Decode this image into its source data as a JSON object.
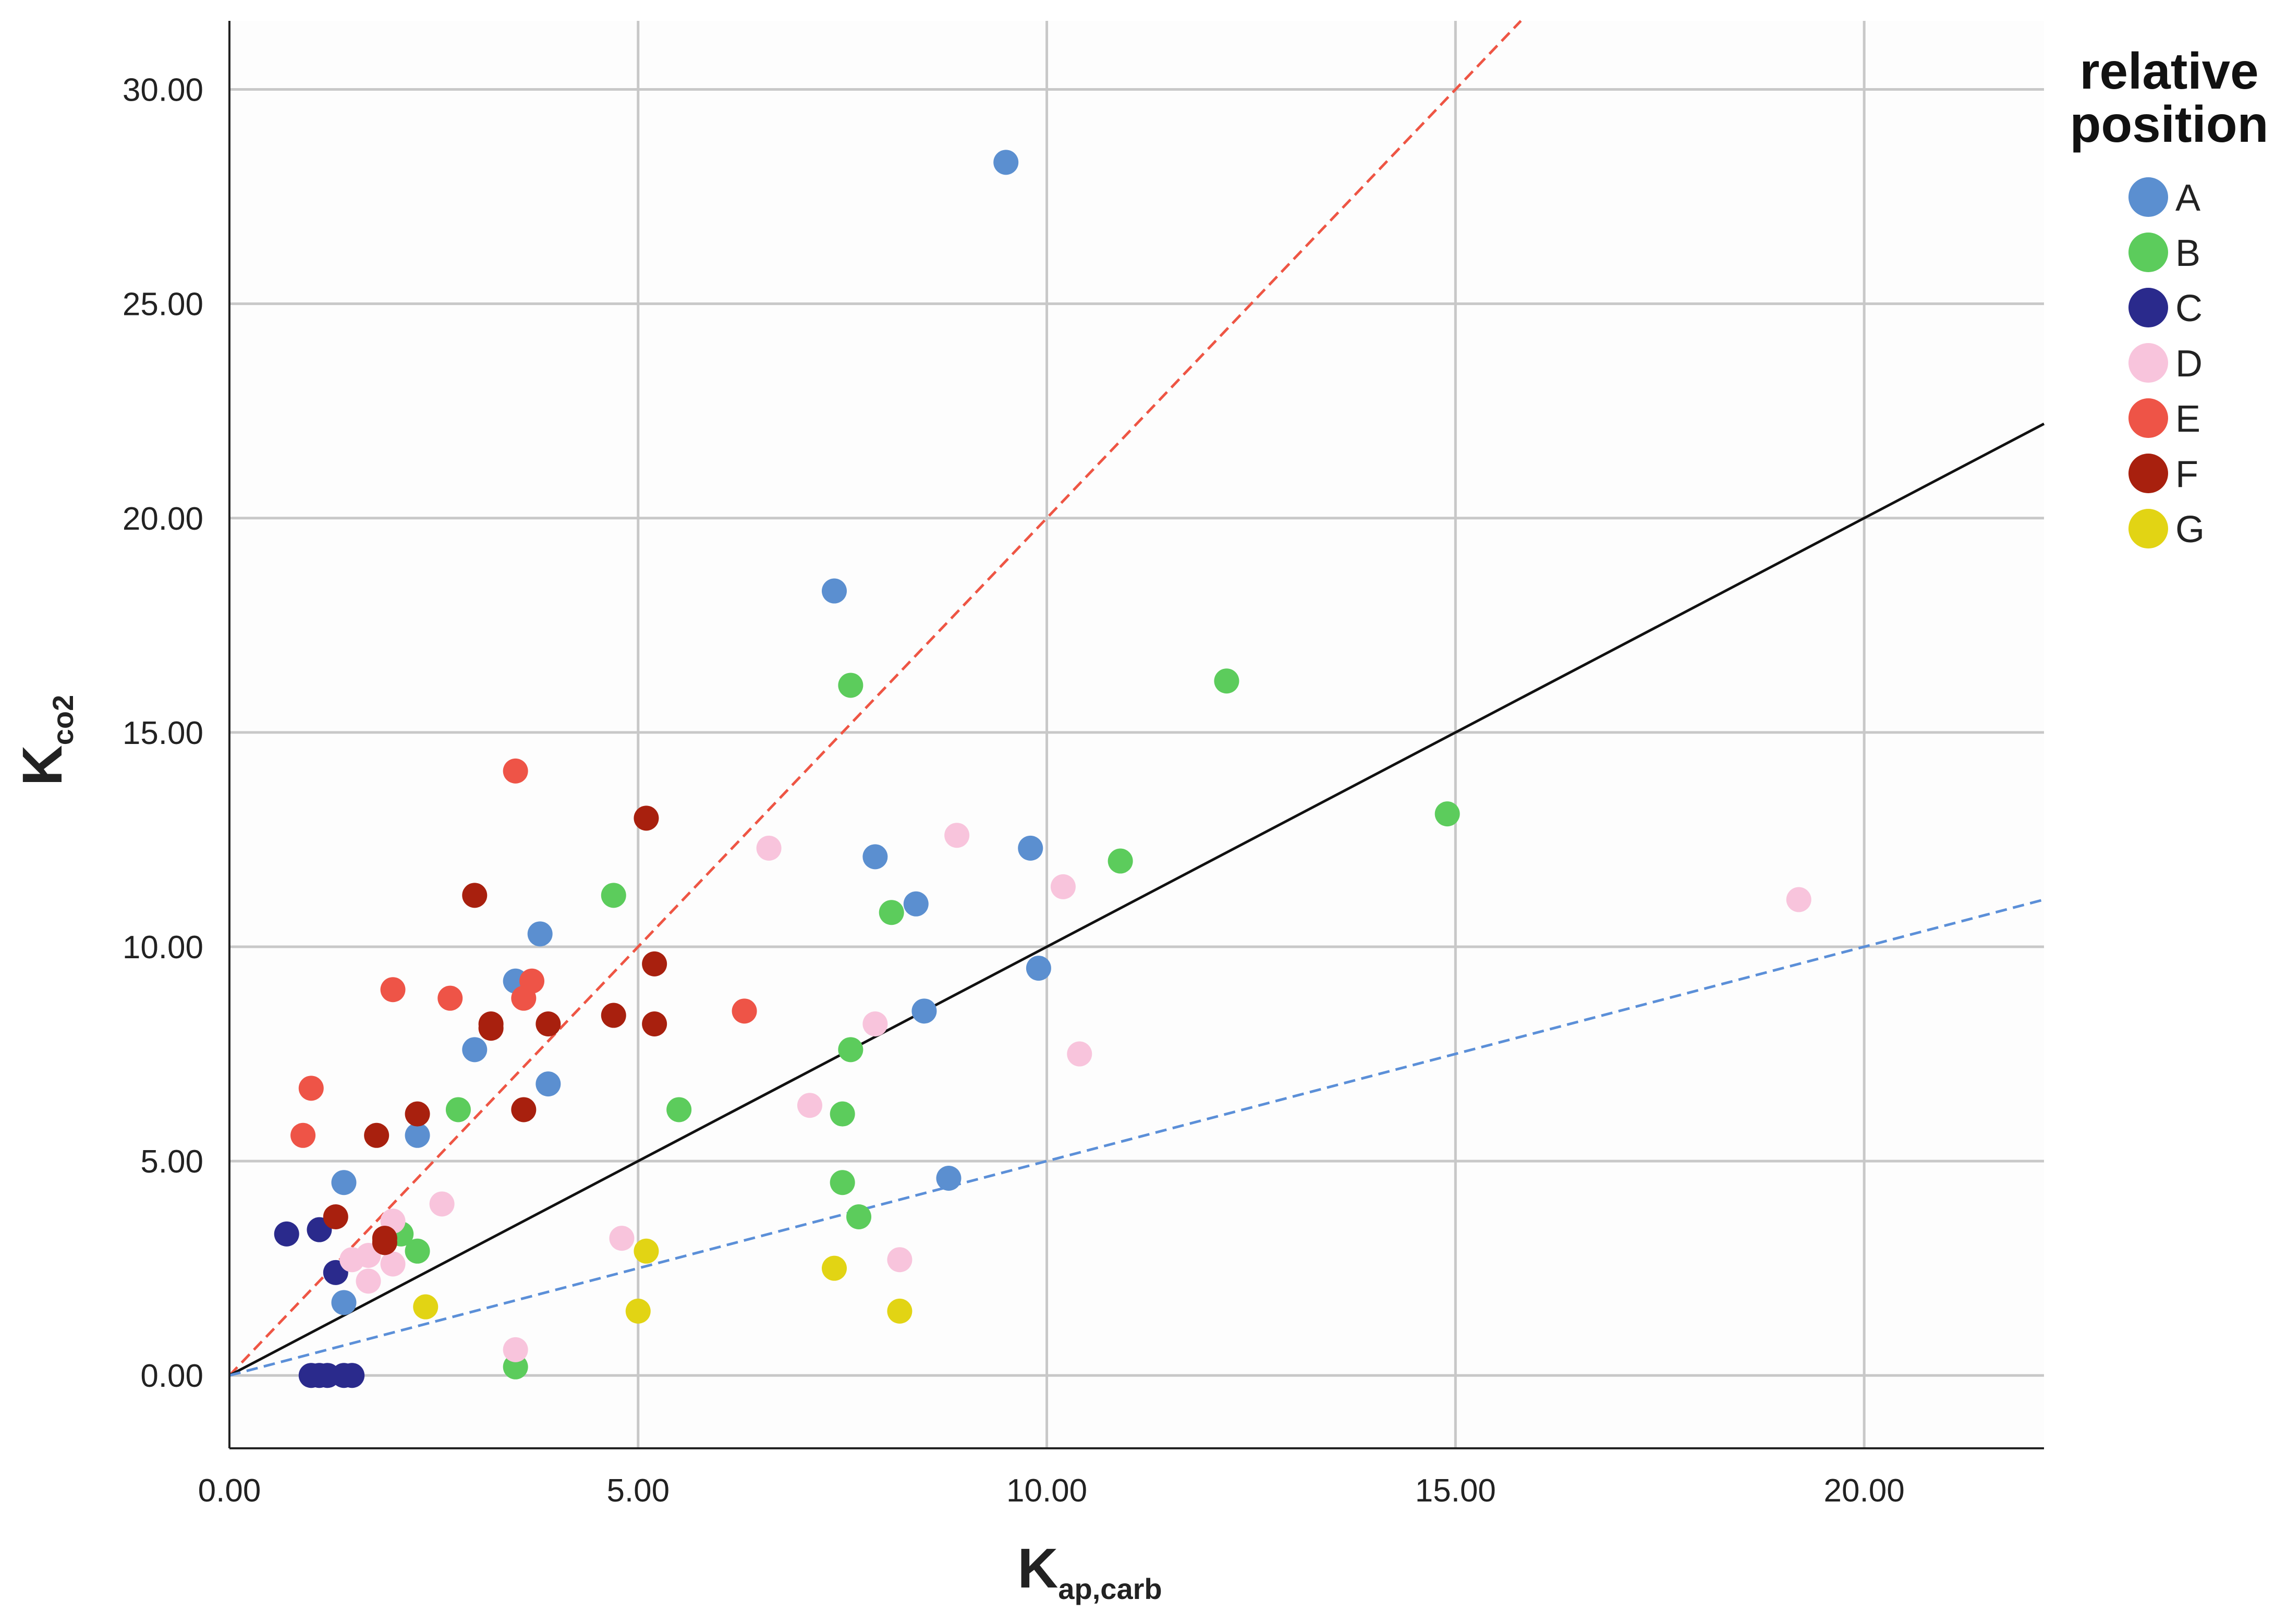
{
  "chart_data": {
    "type": "scatter",
    "title": "",
    "xlabel": {
      "main": "K",
      "sub": "ap,carb"
    },
    "ylabel": {
      "main": "K",
      "sub": "co2"
    },
    "xlim": [
      0,
      22.2
    ],
    "ylim": [
      -1.7,
      31.6
    ],
    "x_ticks": [
      "0.00",
      "5.00",
      "10.00",
      "15.00",
      "20.00"
    ],
    "x_tick_values": [
      0,
      5,
      10,
      15,
      20
    ],
    "y_ticks": [
      "0.00",
      "5.00",
      "10.00",
      "15.00",
      "20.00",
      "25.00",
      "30.00"
    ],
    "y_tick_values": [
      0,
      5,
      10,
      15,
      20,
      25,
      30
    ],
    "grid": true,
    "legend": {
      "title": "relative position",
      "title_lines": [
        "relative",
        "position"
      ],
      "placement": "right"
    },
    "reference_lines": [
      {
        "slope": 2.0,
        "color": "#ee5544",
        "style": "dashed"
      },
      {
        "slope": 1.0,
        "color": "#111111",
        "style": "solid"
      },
      {
        "slope": 0.5,
        "color": "#5b8fd8",
        "style": "dashed"
      }
    ],
    "series": [
      {
        "name": "A",
        "color": "#5b8fd0",
        "points": [
          [
            9.5,
            28.3
          ],
          [
            7.4,
            18.3
          ],
          [
            7.9,
            12.1
          ],
          [
            9.8,
            12.3
          ],
          [
            8.4,
            11.0
          ],
          [
            3.8,
            10.3
          ],
          [
            3.5,
            9.2
          ],
          [
            9.9,
            9.5
          ],
          [
            3.0,
            7.6
          ],
          [
            8.5,
            8.5
          ],
          [
            3.9,
            6.8
          ],
          [
            2.3,
            5.6
          ],
          [
            1.4,
            4.5
          ],
          [
            8.8,
            4.6
          ],
          [
            1.4,
            1.7
          ]
        ]
      },
      {
        "name": "B",
        "color": "#5ccc5c",
        "points": [
          [
            7.6,
            16.1
          ],
          [
            12.2,
            16.2
          ],
          [
            14.9,
            13.1
          ],
          [
            10.9,
            12.0
          ],
          [
            4.7,
            11.2
          ],
          [
            8.1,
            10.8
          ],
          [
            7.6,
            7.6
          ],
          [
            2.8,
            6.2
          ],
          [
            5.5,
            6.2
          ],
          [
            7.5,
            6.1
          ],
          [
            7.5,
            4.5
          ],
          [
            7.7,
            3.7
          ],
          [
            2.1,
            3.3
          ],
          [
            2.3,
            2.9
          ],
          [
            3.5,
            0.2
          ]
        ]
      },
      {
        "name": "C",
        "color": "#2a2a8c",
        "points": [
          [
            0.7,
            3.3
          ],
          [
            1.1,
            3.4
          ],
          [
            1.3,
            2.4
          ],
          [
            1.0,
            0.0
          ],
          [
            1.1,
            0.0
          ],
          [
            1.2,
            0.0
          ],
          [
            1.4,
            0.0
          ],
          [
            1.5,
            0.0
          ]
        ]
      },
      {
        "name": "D",
        "color": "#f8c4dc",
        "points": [
          [
            6.6,
            12.3
          ],
          [
            8.9,
            12.6
          ],
          [
            10.2,
            11.4
          ],
          [
            19.2,
            11.1
          ],
          [
            7.9,
            8.2
          ],
          [
            10.4,
            7.5
          ],
          [
            7.1,
            6.3
          ],
          [
            2.6,
            4.0
          ],
          [
            2.0,
            3.6
          ],
          [
            4.8,
            3.2
          ],
          [
            1.5,
            2.7
          ],
          [
            1.7,
            2.8
          ],
          [
            2.0,
            2.6
          ],
          [
            8.2,
            2.7
          ],
          [
            1.7,
            2.2
          ],
          [
            3.5,
            0.6
          ]
        ]
      },
      {
        "name": "E",
        "color": "#ee5447",
        "points": [
          [
            3.5,
            14.1
          ],
          [
            3.7,
            9.2
          ],
          [
            2.0,
            9.0
          ],
          [
            2.7,
            8.8
          ],
          [
            3.6,
            8.8
          ],
          [
            6.3,
            8.5
          ],
          [
            1.0,
            6.7
          ],
          [
            0.9,
            5.6
          ]
        ]
      },
      {
        "name": "F",
        "color": "#a8200e",
        "points": [
          [
            5.1,
            13.0
          ],
          [
            3.0,
            11.2
          ],
          [
            5.2,
            9.6
          ],
          [
            3.2,
            8.2
          ],
          [
            3.2,
            8.1
          ],
          [
            4.7,
            8.4
          ],
          [
            3.9,
            8.2
          ],
          [
            5.2,
            8.2
          ],
          [
            2.3,
            6.1
          ],
          [
            3.6,
            6.2
          ],
          [
            1.8,
            5.6
          ],
          [
            1.3,
            3.7
          ],
          [
            1.9,
            3.2
          ],
          [
            1.9,
            3.1
          ]
        ]
      },
      {
        "name": "G",
        "color": "#e2d414",
        "points": [
          [
            5.1,
            2.9
          ],
          [
            7.4,
            2.5
          ],
          [
            2.4,
            1.6
          ],
          [
            5.0,
            1.5
          ],
          [
            8.2,
            1.5
          ]
        ]
      }
    ]
  }
}
